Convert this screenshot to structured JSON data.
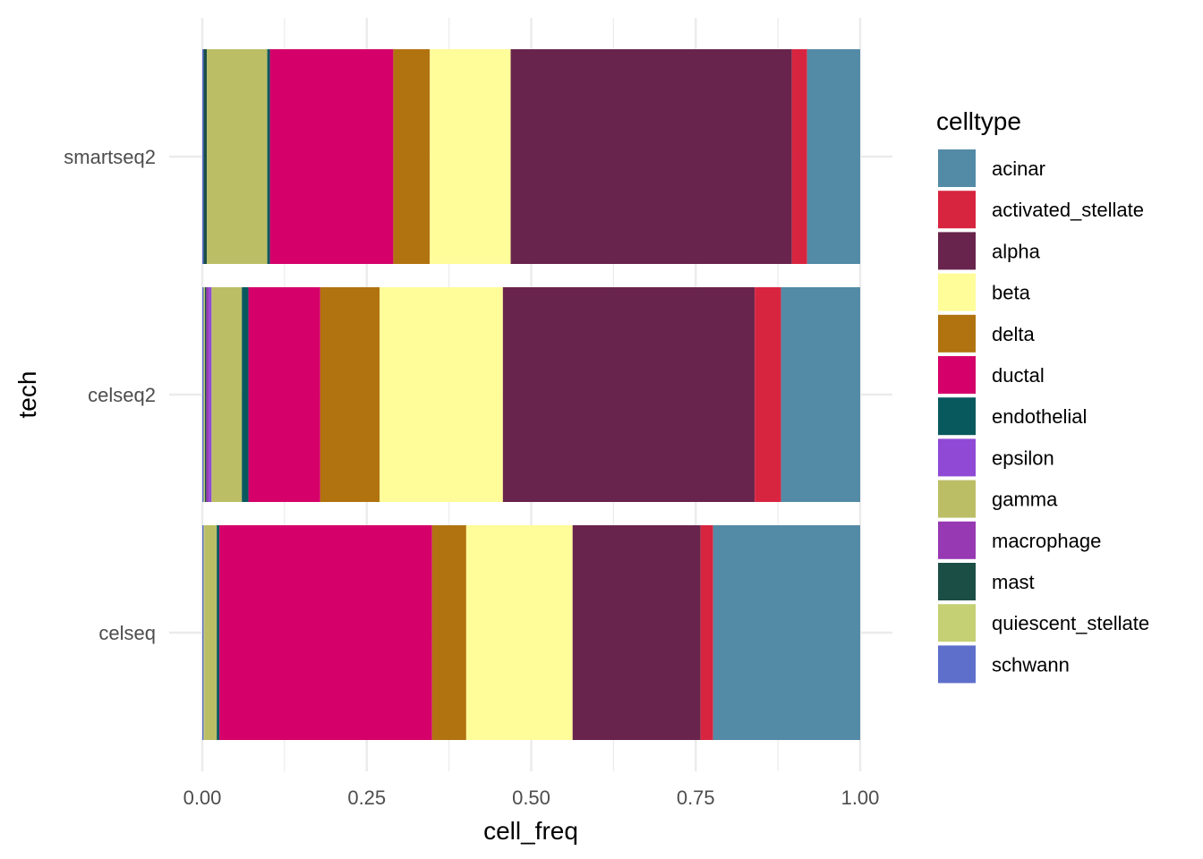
{
  "chart_data": {
    "type": "bar",
    "orientation": "horizontal",
    "stacked": true,
    "xlabel": "cell_freq",
    "ylabel": "tech",
    "xlim": [
      0,
      1
    ],
    "x_ticks": [
      "0.00",
      "0.25",
      "0.50",
      "0.75",
      "1.00"
    ],
    "x_tick_values": [
      0,
      0.25,
      0.5,
      0.75,
      1.0
    ],
    "grid": true,
    "legend_title": "celltype",
    "legend_position": "right",
    "categories": [
      "smartseq2",
      "celseq2",
      "celseq"
    ],
    "series": [
      {
        "name": "schwann",
        "color": "#5E6FCB",
        "values": [
          0.002,
          0.002,
          0.002
        ]
      },
      {
        "name": "quiescent_stellate",
        "color": "#C5CF74",
        "values": [
          0.0,
          0.002,
          0.001
        ]
      },
      {
        "name": "mast",
        "color": "#1B4F45",
        "values": [
          0.005,
          0.002,
          0.0
        ]
      },
      {
        "name": "macrophage",
        "color": "#9739B3",
        "values": [
          0.0,
          0.004,
          0.0
        ]
      },
      {
        "name": "epsilon",
        "color": "#9049D5",
        "values": [
          0.0,
          0.004,
          0.0
        ]
      },
      {
        "name": "gamma",
        "color": "#BCBE66",
        "values": [
          0.091,
          0.046,
          0.019
        ]
      },
      {
        "name": "endothelial",
        "color": "#08595E",
        "values": [
          0.004,
          0.01,
          0.004
        ]
      },
      {
        "name": "ductal",
        "color": "#D5006A",
        "values": [
          0.186,
          0.109,
          0.324
        ]
      },
      {
        "name": "delta",
        "color": "#B1730F",
        "values": [
          0.055,
          0.09,
          0.052
        ]
      },
      {
        "name": "beta",
        "color": "#FFFC9A",
        "values": [
          0.122,
          0.187,
          0.162
        ]
      },
      {
        "name": "alpha",
        "color": "#68244C",
        "values": [
          0.424,
          0.382,
          0.195
        ]
      },
      {
        "name": "activated_stellate",
        "color": "#D8253F",
        "values": [
          0.023,
          0.04,
          0.019
        ]
      },
      {
        "name": "acinar",
        "color": "#538AA6",
        "values": [
          0.08,
          0.12,
          0.224
        ]
      }
    ],
    "legend_order": [
      "acinar",
      "activated_stellate",
      "alpha",
      "beta",
      "delta",
      "ductal",
      "endothelial",
      "epsilon",
      "gamma",
      "macrophage",
      "mast",
      "quiescent_stellate",
      "schwann"
    ]
  }
}
